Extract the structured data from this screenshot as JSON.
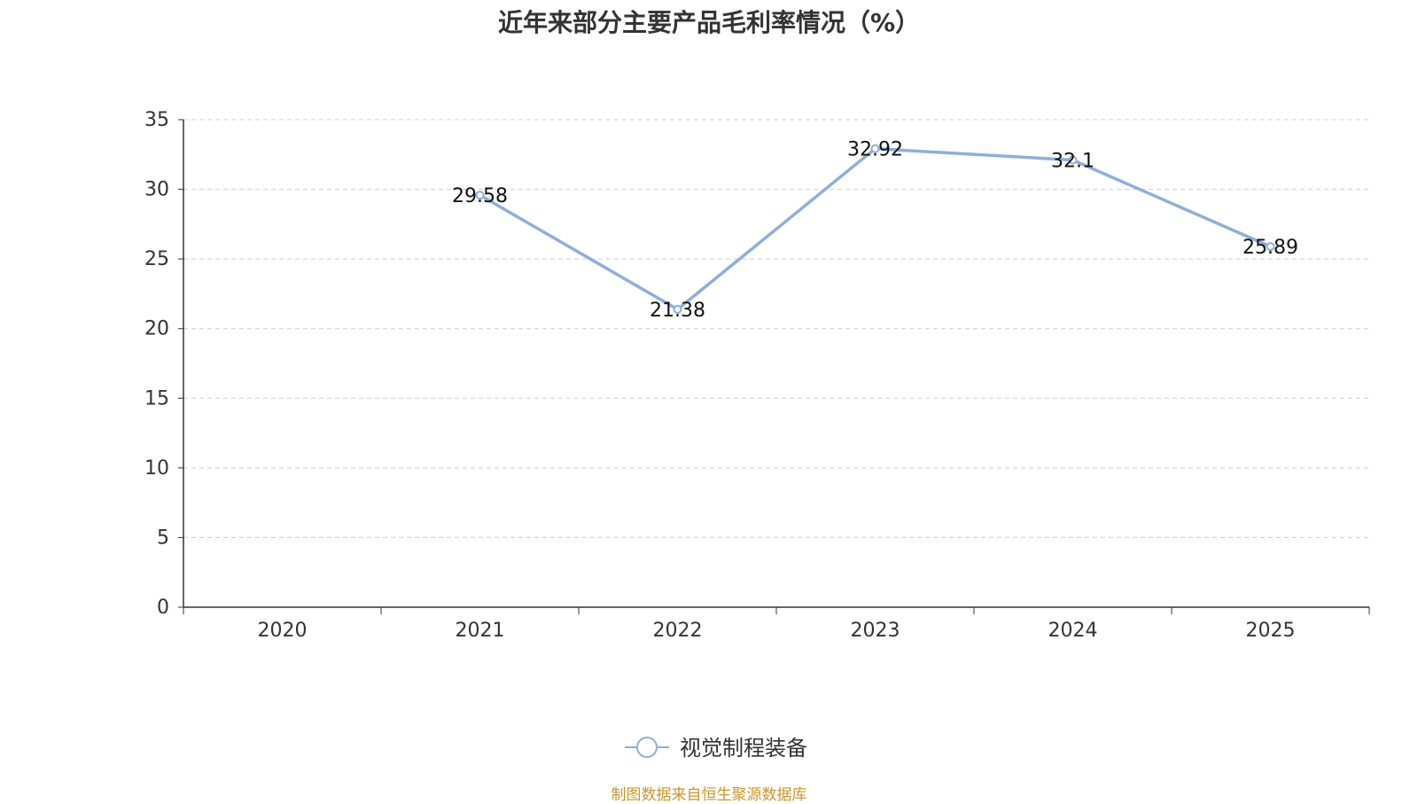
{
  "title": "近年来部分主要产品毛利率情况（%）",
  "footer": "制图数据来自恒生聚源数据库",
  "colors": {
    "line": "#8eaedb",
    "grid": "#cccccc",
    "axis": "#333333",
    "text": "#333333"
  },
  "chart_data": {
    "type": "line",
    "title": "近年来部分主要产品毛利率情况（%）",
    "categories": [
      "2020",
      "2021",
      "2022",
      "2023",
      "2024",
      "2025"
    ],
    "series": [
      {
        "name": "视觉制程装备",
        "values": [
          null,
          29.58,
          21.38,
          32.92,
          32.1,
          25.89
        ],
        "labels": [
          "",
          "29.58",
          "21.38",
          "32.92",
          "32.1",
          "25.89"
        ]
      }
    ],
    "yticks": [
      "0",
      "5",
      "10",
      "15",
      "20",
      "25",
      "30",
      "35"
    ],
    "ylim": [
      0,
      35
    ],
    "grid": true,
    "legend_position": "bottom-center"
  }
}
